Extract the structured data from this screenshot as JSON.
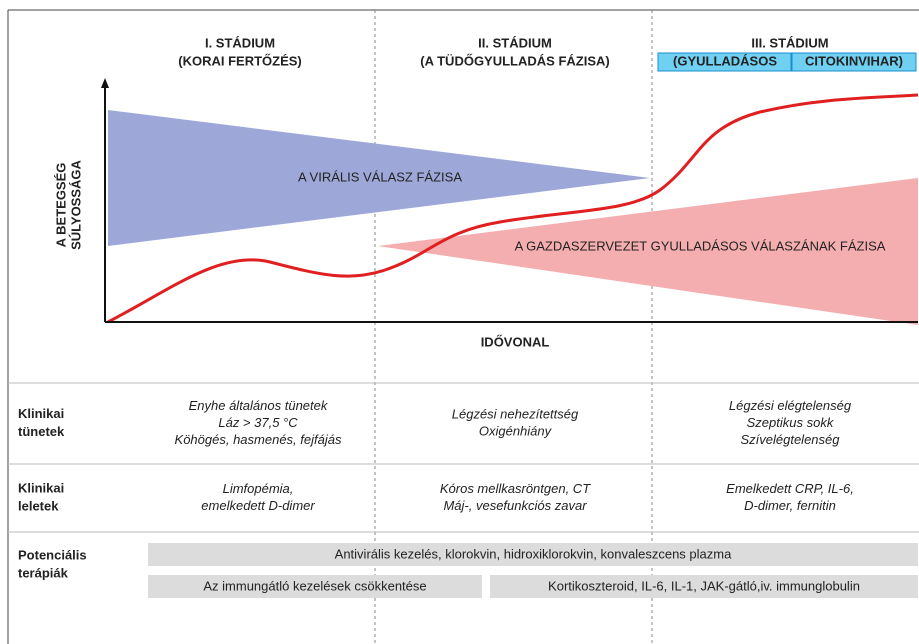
{
  "stages": [
    {
      "title": "I. STÁDIUM",
      "subtitle": "(KORAI FERTŐZÉS)"
    },
    {
      "title": "II. STÁDIUM",
      "subtitle": "(A TÜDŐGYULLADÁS FÁZISA)"
    },
    {
      "title": "III. STÁDIUM",
      "subtitle": [
        "(GYULLADÁSOS",
        "CITOKINVIHAR)"
      ]
    }
  ],
  "y_axis_label": [
    "A BETEGSÉG",
    "SÚLYOSSÁGA"
  ],
  "x_axis_label": "IDŐVONAL",
  "phases": {
    "viral": "A VIRÁLIS VÁLASZ FÁZISA",
    "host": "A GAZDASZERVEZET GYULLADÁSOS VÁLASZÁNAK FÁZISA"
  },
  "rows": [
    {
      "label": [
        "Klinikai",
        "tünetek"
      ],
      "cells": [
        [
          "Enyhe általános tünetek",
          "Láz > 37,5 °C",
          "Köhögés, hasmenés, fejfájás"
        ],
        [
          "Légzési nehezítettség",
          "Oxigénhiány"
        ],
        [
          "Légzési elégtelenség",
          "Szeptikus sokk",
          "Szívelégtelenség"
        ]
      ]
    },
    {
      "label": [
        "Klinikai",
        "leletek"
      ],
      "cells": [
        [
          "Limfopémia,",
          "emelkedett D-dimer"
        ],
        [
          "Kóros mellkasröntgen, CT",
          "Máj-, vesefunkciós zavar"
        ],
        [
          "Emelkedett CRP, IL-6,",
          "D-dimer, fernitin"
        ]
      ]
    }
  ],
  "therapy": {
    "label": [
      "Potenciális",
      "terápiák"
    ],
    "bars": [
      "Antivirális kezelés, klorokvin, hidroxiklorokvin, konvaleszcens plazma",
      "Az immungátló kezelések csökkentése",
      "Kortikoszteroid, IL-6, IL-1, JAK-gátló,iv. immunglobulin"
    ]
  }
}
